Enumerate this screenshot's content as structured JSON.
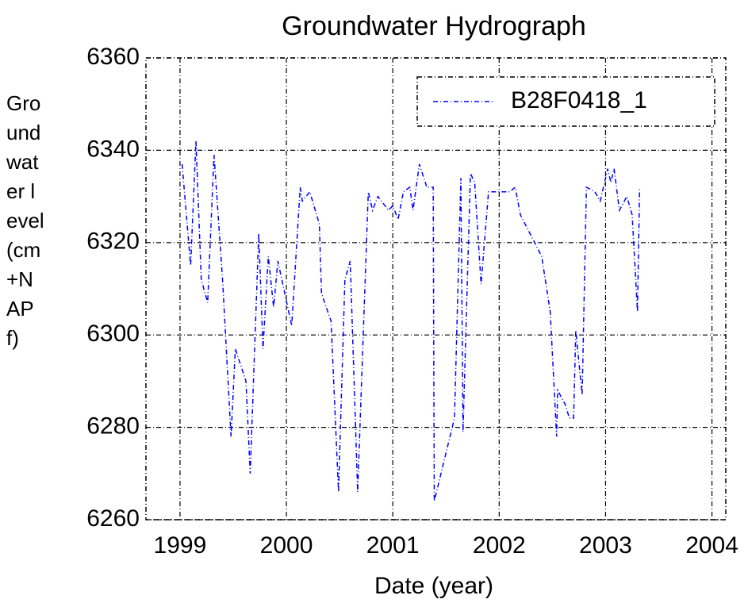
{
  "chart_data": {
    "type": "line",
    "title": "Groundwater Hydrograph",
    "xlabel": "Date (year)",
    "ylabel": "Groundwater level (cm+NAPf)",
    "xlim": [
      1998.68,
      2004.13
    ],
    "ylim": [
      6260,
      6360
    ],
    "xticks": [
      1999,
      2000,
      2001,
      2002,
      2003,
      2004
    ],
    "yticks": [
      6260,
      6280,
      6300,
      6320,
      6340,
      6360
    ],
    "grid": true,
    "legend": "upper right",
    "series": [
      {
        "name": "B28F0418_1",
        "color": "#0000ff",
        "x": [
          1999.02,
          1999.1,
          1999.15,
          1999.2,
          1999.26,
          1999.32,
          1999.4,
          1999.48,
          1999.52,
          1999.62,
          1999.66,
          1999.74,
          1999.78,
          1999.83,
          1999.88,
          1999.92,
          2000.05,
          2000.13,
          2000.15,
          2000.22,
          2000.31,
          2000.33,
          2000.42,
          2000.49,
          2000.55,
          2000.6,
          2000.67,
          2000.77,
          2000.81,
          2000.86,
          2000.96,
          2001.0,
          2001.05,
          2001.1,
          2001.16,
          2001.19,
          2001.25,
          2001.32,
          2001.38,
          2001.39,
          2001.58,
          2001.64,
          2001.66,
          2001.73,
          2001.77,
          2001.83,
          2001.9,
          2002.0,
          2002.1,
          2002.15,
          2002.2,
          2002.4,
          2002.48,
          2002.54,
          2002.55,
          2002.62,
          2002.66,
          2002.7,
          2002.72,
          2002.78,
          2002.82,
          2002.9,
          2002.95,
          2003.02,
          2003.05,
          2003.08,
          2003.13,
          2003.2,
          2003.25,
          2003.3,
          2003.32
        ],
        "values": [
          6337,
          6315,
          6342,
          6312,
          6307,
          6339,
          6312,
          6278,
          6297,
          6290,
          6270,
          6322,
          6297,
          6317,
          6306,
          6316,
          6302,
          6332,
          6329,
          6331,
          6324,
          6309,
          6303,
          6266,
          6312,
          6316,
          6266,
          6331,
          6327,
          6330,
          6327,
          6328,
          6325,
          6331,
          6332,
          6327,
          6337,
          6332,
          6332,
          6264,
          6282,
          6334,
          6279,
          6335,
          6333,
          6311,
          6331,
          6331,
          6331,
          6332,
          6326,
          6317,
          6305,
          6278,
          6288,
          6285,
          6282,
          6282,
          6301,
          6287,
          6332,
          6331,
          6329,
          6336,
          6333,
          6336,
          6327,
          6330,
          6326,
          6305,
          6332
        ]
      }
    ]
  }
}
